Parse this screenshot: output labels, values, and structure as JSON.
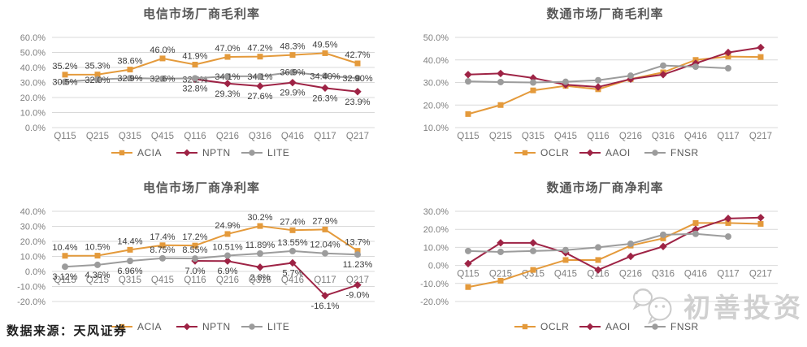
{
  "footer": {
    "source_label": "数据来源：天风证券"
  },
  "watermark": {
    "text": "初善投资"
  },
  "colors": {
    "orange_series": "#E49A3B",
    "maroon_series": "#9E2345",
    "gray_series": "#9C9C9C",
    "gridline": "#D9D9D9",
    "axis_text": "#7F7F7F",
    "data_label": "#3C3C3C",
    "title_text": "#565656",
    "watermark": "#CBCBCB"
  },
  "chart_data": [
    {
      "type": "line",
      "title": "电信市场厂商毛利率",
      "categories": [
        "Q115",
        "Q215",
        "Q315",
        "Q415",
        "Q116",
        "Q216",
        "Q316",
        "Q416",
        "Q117",
        "Q217"
      ],
      "ylim": [
        0,
        60
      ],
      "ytick_step": 10,
      "grid": true,
      "legend_position": "bottom",
      "series": [
        {
          "name": "ACIA",
          "marker": "square",
          "color": "#E49A3B",
          "label_pos": "above",
          "values": [
            35.2,
            35.3,
            38.6,
            46.0,
            41.9,
            47.0,
            47.2,
            48.3,
            49.5,
            42.7
          ],
          "labels": [
            "35.2%",
            "35.3%",
            "38.6%",
            "46.0%",
            "41.9%",
            "47.0%",
            "47.2%",
            "48.3%",
            "49.5%",
            "42.7%"
          ]
        },
        {
          "name": "NPTN",
          "marker": "diamond",
          "color": "#9E2345",
          "label_pos": "below",
          "label_pos_overrides": {
            "4": "center"
          },
          "values": [
            null,
            null,
            null,
            null,
            32.2,
            29.3,
            27.6,
            29.9,
            26.3,
            23.9
          ],
          "labels": [
            null,
            null,
            null,
            null,
            "32.2%",
            "29.3%",
            "27.6%",
            "29.9%",
            "26.3%",
            "23.9%"
          ]
        },
        {
          "name": "LITE",
          "marker": "circle",
          "color": "#9C9C9C",
          "label_pos": "center",
          "label_pos_overrides": {
            "4": "below"
          },
          "values": [
            30.5,
            32.0,
            32.9,
            32.6,
            32.8,
            34.1,
            34.1,
            36.9,
            34.4,
            32.9
          ],
          "labels": [
            "30.5%",
            "32.0%",
            "32.9%",
            "32.6%",
            "32.8%",
            "34.1%",
            "34.1%",
            "36.9%",
            "34.40%",
            "32.90%"
          ]
        }
      ]
    },
    {
      "type": "line",
      "title": "数通市场厂商毛利率",
      "categories": [
        "Q115",
        "Q215",
        "Q315",
        "Q415",
        "Q116",
        "Q216",
        "Q316",
        "Q416",
        "Q117",
        "Q217"
      ],
      "ylim": [
        10,
        50
      ],
      "ytick_step": 10,
      "grid": true,
      "legend_position": "bottom",
      "series": [
        {
          "name": "OCLR",
          "marker": "square",
          "color": "#E49A3B",
          "values": [
            16,
            20,
            26.5,
            28.5,
            27,
            31.5,
            34.5,
            40,
            41.5,
            41.3
          ]
        },
        {
          "name": "AAOI",
          "marker": "diamond",
          "color": "#9E2345",
          "values": [
            33.5,
            34,
            32,
            29,
            28,
            31.5,
            33.5,
            38.5,
            43.3,
            45.5
          ]
        },
        {
          "name": "FNSR",
          "marker": "circle",
          "color": "#9C9C9C",
          "values": [
            30.5,
            30.2,
            30,
            30.3,
            31,
            33,
            37.5,
            37,
            36.3,
            null
          ]
        }
      ]
    },
    {
      "type": "line",
      "title": "电信市场厂商净利率",
      "categories": [
        "Q115",
        "Q215",
        "Q315",
        "Q415",
        "Q116",
        "Q216",
        "Q316",
        "Q416",
        "Q117",
        "Q217"
      ],
      "ylim": [
        -20,
        40
      ],
      "ytick_step": 10,
      "grid": true,
      "legend_position": "bottom",
      "series": [
        {
          "name": "ACIA",
          "marker": "square",
          "color": "#E49A3B",
          "label_pos": "above",
          "values": [
            10.4,
            10.5,
            14.4,
            17.4,
            17.2,
            24.9,
            30.2,
            27.4,
            27.9,
            13.7
          ],
          "labels": [
            "10.4%",
            "10.5%",
            "14.4%",
            "17.4%",
            "17.2%",
            "24.9%",
            "30.2%",
            "27.4%",
            "27.9%",
            "13.7%"
          ]
        },
        {
          "name": "NPTN",
          "marker": "diamond",
          "color": "#9E2345",
          "label_pos": "below",
          "values": [
            null,
            null,
            null,
            null,
            7.0,
            6.9,
            2.8,
            5.7,
            -16.1,
            -9.0
          ],
          "labels": [
            null,
            null,
            null,
            null,
            "7.0%",
            "6.9%",
            "2.8%",
            "5.7%",
            "-16.1%",
            "-9.0%"
          ]
        },
        {
          "name": "LITE",
          "marker": "circle",
          "color": "#9C9C9C",
          "label_pos": "above",
          "label_pos_overrides": {
            "0": "below",
            "1": "below",
            "2": "below",
            "9": "below"
          },
          "values": [
            3.12,
            4.36,
            6.96,
            8.75,
            8.55,
            10.51,
            11.89,
            13.55,
            12.04,
            11.23
          ],
          "labels": [
            "3.12%",
            "4.36%",
            "6.96%",
            "8.75%",
            "8.55%",
            "10.51%",
            "11.89%",
            "13.55%",
            "12.04%",
            "11.23%"
          ]
        }
      ]
    },
    {
      "type": "line",
      "title": "数通市场厂商净利率",
      "categories": [
        "Q115",
        "Q215",
        "Q315",
        "Q415",
        "Q116",
        "Q216",
        "Q316",
        "Q416",
        "Q117",
        "Q217"
      ],
      "ylim": [
        -20,
        30
      ],
      "ytick_step": 10,
      "grid": true,
      "legend_position": "bottom",
      "series": [
        {
          "name": "OCLR",
          "marker": "square",
          "color": "#E49A3B",
          "values": [
            -12,
            -8.5,
            -2.5,
            3,
            3,
            11,
            15,
            23.5,
            23.5,
            23
          ]
        },
        {
          "name": "AAOI",
          "marker": "diamond",
          "color": "#9E2345",
          "values": [
            1,
            12.5,
            12.5,
            7,
            -2.5,
            5,
            10.5,
            20,
            26,
            26.5
          ]
        },
        {
          "name": "FNSR",
          "marker": "circle",
          "color": "#9C9C9C",
          "values": [
            8,
            7.5,
            8,
            8.5,
            10,
            12,
            17,
            17.5,
            16,
            null
          ]
        }
      ]
    }
  ]
}
